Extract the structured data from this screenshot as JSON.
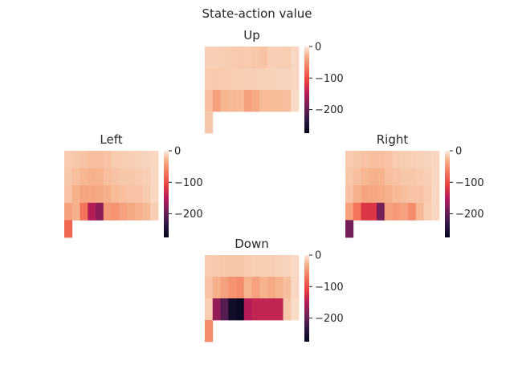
{
  "figure": {
    "title": "State-action value"
  },
  "chart_data": {
    "type": "heatmap",
    "grid": {
      "rows": 4,
      "cols": 12
    },
    "colormap": "rocket",
    "colorbar": {
      "min": -275,
      "max": 0,
      "ticks": [
        0,
        -100,
        -200
      ]
    },
    "panels": [
      {
        "name": "Up",
        "title": "Up",
        "values": [
          [
            -14,
            -14,
            -15,
            -16,
            -17,
            -16,
            -18,
            -20,
            -14,
            -14,
            -15,
            -10
          ],
          [
            -16,
            -17,
            -16,
            -15,
            -15,
            -14,
            -14,
            -13,
            -13,
            -12,
            -12,
            -10
          ],
          [
            -22,
            -40,
            -27,
            -25,
            -24,
            -40,
            -34,
            -24,
            -23,
            -23,
            -22,
            -8
          ],
          [
            -18,
            null,
            null,
            null,
            null,
            null,
            null,
            null,
            null,
            null,
            null,
            null
          ]
        ]
      },
      {
        "name": "Left",
        "title": "Left",
        "values": [
          [
            -16,
            -18,
            -20,
            -22,
            -22,
            -20,
            -16,
            -15,
            -14,
            -13,
            -12,
            -10
          ],
          [
            -18,
            -22,
            -26,
            -30,
            -28,
            -22,
            -20,
            -18,
            -18,
            -16,
            -14,
            -10
          ],
          [
            -20,
            -30,
            -38,
            -36,
            -35,
            -30,
            -24,
            -22,
            -20,
            -20,
            -16,
            -10
          ],
          [
            -40,
            -30,
            -70,
            -150,
            -175,
            -45,
            -50,
            -40,
            -35,
            -30,
            -25,
            -15
          ]
        ],
        "extra_row": [
          -80,
          null,
          null,
          null,
          null,
          null,
          null,
          null,
          null,
          null,
          null,
          null
        ]
      },
      {
        "name": "Right",
        "title": "Right",
        "values": [
          [
            -16,
            -18,
            -20,
            -22,
            -22,
            -20,
            -16,
            -15,
            -14,
            -13,
            -12,
            -10
          ],
          [
            -18,
            -22,
            -26,
            -30,
            -28,
            -22,
            -20,
            -18,
            -18,
            -16,
            -14,
            -10
          ],
          [
            -20,
            -30,
            -38,
            -36,
            -35,
            -30,
            -24,
            -22,
            -20,
            -20,
            -16,
            -10
          ],
          [
            -40,
            -70,
            -120,
            -120,
            -190,
            -40,
            -45,
            -40,
            -55,
            -25,
            -15,
            -10
          ]
        ],
        "extra_row": [
          -190,
          null,
          null,
          null,
          null,
          null,
          null,
          null,
          null,
          null,
          null,
          null
        ]
      },
      {
        "name": "Down",
        "title": "Down",
        "values": [
          [
            -16,
            -17,
            -18,
            -18,
            -18,
            -16,
            -15,
            -15,
            -14,
            -13,
            -12,
            -9
          ],
          [
            -20,
            -30,
            -40,
            -50,
            -55,
            -28,
            -40,
            -28,
            -35,
            -28,
            -22,
            -10
          ],
          [
            -15,
            -170,
            -210,
            -260,
            -265,
            -150,
            -140,
            -140,
            -140,
            -140,
            -18,
            -8
          ],
          [
            -55,
            null,
            null,
            null,
            null,
            null,
            null,
            null,
            null,
            null,
            null,
            null
          ]
        ]
      }
    ]
  }
}
